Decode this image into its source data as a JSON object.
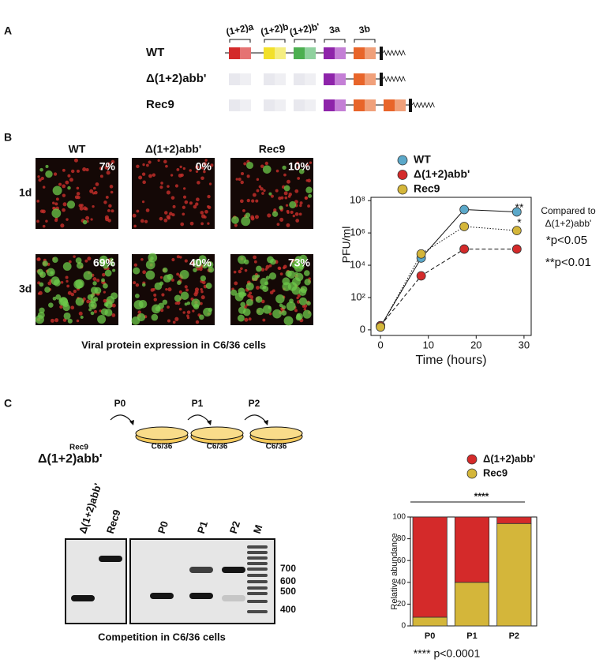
{
  "panel_a": {
    "label": "A",
    "segment_labels": [
      "(1+2)a",
      "(1+2)b",
      "(1+2)b'",
      "3a",
      "3b"
    ],
    "rows": [
      "WT",
      "Δ(1+2)abb'",
      "Rec9"
    ]
  },
  "panel_b": {
    "label": "B",
    "columns": [
      "WT",
      "Δ(1+2)abb'",
      "Rec9"
    ],
    "rows": [
      "1d",
      "3d"
    ],
    "percentages": [
      [
        "7%",
        "0%",
        "10%"
      ],
      [
        "69%",
        "40%",
        "73%"
      ]
    ],
    "caption": "Viral protein expression in C6/36 cells"
  },
  "panel_c": {
    "label": "C",
    "strain_top": "Rec9",
    "strain": "Δ(1+2)abb'",
    "passages": [
      "P0",
      "P1",
      "P2"
    ],
    "cells": [
      "C6/36",
      "C6/36",
      "C6/36"
    ],
    "gel_lanes": [
      "Δ(1+2)abb'",
      "Rec9",
      "P0",
      "P1",
      "P2",
      "M"
    ],
    "marker_sizes": [
      "700",
      "600",
      "500",
      "400"
    ],
    "caption": "Competition in C6/36 cells"
  },
  "chart_data": [
    {
      "type": "line",
      "y_label": "PFU/ml",
      "x_label": "Time (hours)",
      "x": [
        0,
        8.5,
        17.5,
        28.5
      ],
      "xlim": [
        -2,
        31.5
      ],
      "xticks": [
        0,
        10,
        20,
        30
      ],
      "log_y": true,
      "ylim": [
        0.45,
        160000000
      ],
      "yticks": [
        {
          "value": 1,
          "label": "0"
        },
        {
          "value": 100,
          "label": "10²"
        },
        {
          "value": 10000,
          "label": "10⁴"
        },
        {
          "value": 1000000,
          "label": "10⁶"
        },
        {
          "value": 100000000,
          "label": "10⁸"
        }
      ],
      "series": [
        {
          "name": "WT",
          "color": "#5ba8c9",
          "line_style": "solid",
          "values": [
            1.6,
            28000,
            28000000,
            20000000
          ]
        },
        {
          "name": "Δ(1+2)abb'",
          "color": "#d42a2a",
          "line_style": "dashed",
          "values": [
            1.8,
            2200,
            100000,
            100000
          ]
        },
        {
          "name": "Rec9",
          "color": "#d4b63a",
          "line_style": "dotted",
          "values": [
            1.5,
            50000,
            2500000,
            1400000
          ]
        }
      ],
      "annotations": [
        "**",
        "*",
        "Compared to",
        "Δ(1+2)abb'",
        "*p<0.05",
        "**p<0.01"
      ]
    },
    {
      "type": "bar",
      "stacked": true,
      "y_label": "Relative abundance",
      "categories": [
        "P0",
        "P1",
        "P2"
      ],
      "ylim": [
        0,
        100
      ],
      "yticks": [
        0,
        20,
        40,
        60,
        80,
        100
      ],
      "series": [
        {
          "name": "Δ(1+2)abb'",
          "color": "#d42a2a",
          "values": [
            92,
            60,
            6
          ]
        },
        {
          "name": "Rec9",
          "color": "#d4b63a",
          "values": [
            8,
            40,
            94
          ]
        }
      ],
      "annotations": [
        "****",
        "**** p<0.0001"
      ]
    }
  ]
}
